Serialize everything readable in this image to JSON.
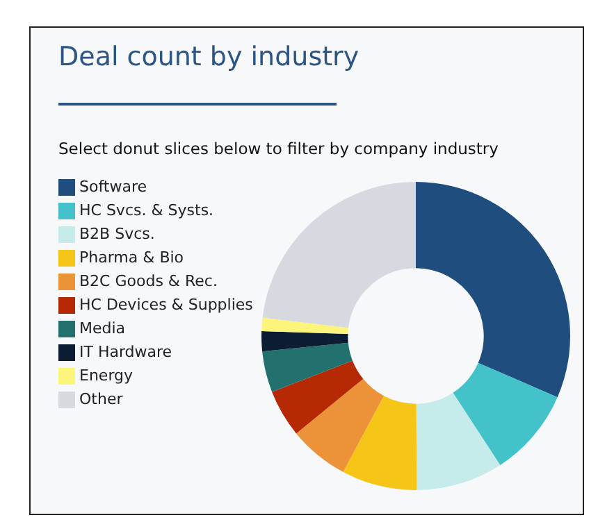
{
  "chart_data": {
    "type": "donut",
    "title": "Deal count by industry",
    "subtitle": "Select donut slices below to filter by company industry",
    "categories": [
      "Software",
      "HC Svcs. & Systs.",
      "B2B Svcs.",
      "Pharma & Bio",
      "B2C Goods & Rec.",
      "HC Devices & Supplies",
      "Media",
      "IT Hardware",
      "Energy",
      "Other"
    ],
    "values": [
      31.5,
      9.3,
      9.1,
      7.9,
      6.3,
      5.0,
      4.3,
      2.1,
      1.4,
      23.1
    ],
    "colors": [
      "#1f4e7e",
      "#43c3c9",
      "#c5ecea",
      "#f5c518",
      "#ec9238",
      "#b52a05",
      "#22716f",
      "#0c1c33",
      "#fdf47c",
      "#d6dae0"
    ],
    "legend": "left"
  }
}
